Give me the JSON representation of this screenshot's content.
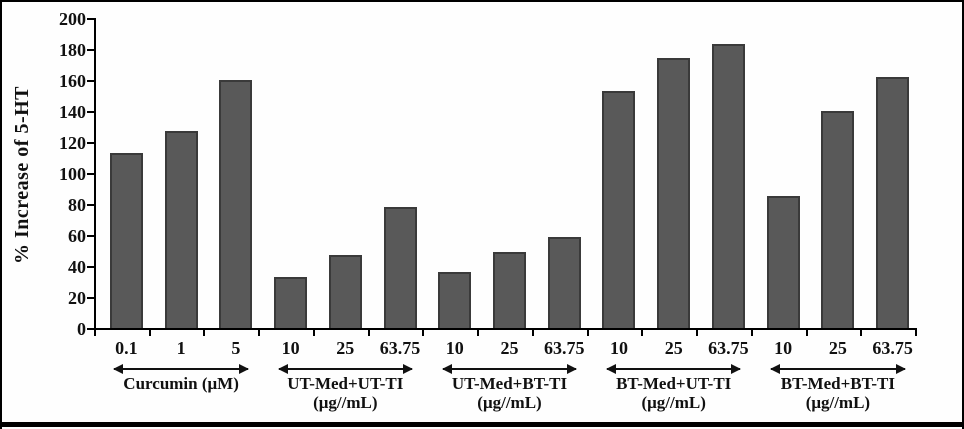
{
  "figure": {
    "background": "#fefefe",
    "frame_color": "#000000",
    "bar_fill": "#595959",
    "bar_border": "#3a3a3a",
    "text_color": "#111111"
  },
  "chart_data": {
    "type": "bar",
    "title": "",
    "xlabel": "",
    "ylabel": "% Increase of 5-HT",
    "ylim": [
      0,
      200
    ],
    "yticks": [
      0,
      20,
      40,
      60,
      80,
      100,
      120,
      140,
      160,
      180,
      200
    ],
    "grid": false,
    "legend": null,
    "groups": [
      {
        "label": "Curcumin (μM)",
        "sublabel": "",
        "categories": [
          "0.1",
          "1",
          "5"
        ],
        "values": [
          113,
          127,
          160
        ]
      },
      {
        "label": "UT-Med+UT-TI",
        "sublabel": "(μg//mL)",
        "categories": [
          "10",
          "25",
          "63.75"
        ],
        "values": [
          33,
          47,
          78
        ]
      },
      {
        "label": "UT-Med+BT-TI",
        "sublabel": "(μg//mL)",
        "categories": [
          "10",
          "25",
          "63.75"
        ],
        "values": [
          36,
          49,
          59
        ]
      },
      {
        "label": "BT-Med+UT-TI",
        "sublabel": "(μg//mL)",
        "categories": [
          "10",
          "25",
          "63.75"
        ],
        "values": [
          153,
          174,
          183
        ]
      },
      {
        "label": "BT-Med+BT-TI",
        "sublabel": "(μg//mL)",
        "categories": [
          "10",
          "25",
          "63.75"
        ],
        "values": [
          85,
          140,
          162
        ]
      }
    ]
  }
}
